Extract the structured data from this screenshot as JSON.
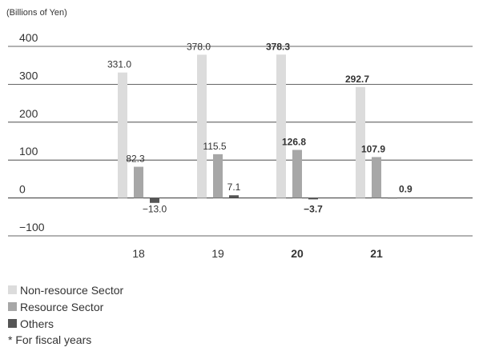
{
  "chart_data": {
    "type": "bar",
    "unit_label": "(Billions of Yen)",
    "categories": [
      "18",
      "19",
      "20",
      "21"
    ],
    "bold_categories": [
      "20",
      "21"
    ],
    "ylim": [
      -100,
      400
    ],
    "yticks": [
      400,
      300,
      200,
      100,
      0,
      -100
    ],
    "ytick_labels": [
      "400",
      "300",
      "200",
      "100",
      "0",
      "−100"
    ],
    "grid": true,
    "series": [
      {
        "name": "Non-resource Sector",
        "color": "#dcdcdc",
        "values": [
          331.0,
          378.0,
          378.3,
          292.7
        ],
        "labels": [
          "331.0",
          "378.0",
          "378.3",
          "292.7"
        ]
      },
      {
        "name": "Resource Sector",
        "color": "#a7a7a7",
        "values": [
          82.3,
          115.5,
          126.8,
          107.9
        ],
        "labels": [
          "82.3",
          "115.5",
          "126.8",
          "107.9"
        ]
      },
      {
        "name": "Others",
        "color": "#555555",
        "values": [
          -13.0,
          7.1,
          -3.7,
          0.9
        ],
        "labels": [
          "−13.0",
          "7.1",
          "−3.7",
          "0.9"
        ]
      }
    ],
    "legend_placement": "bottom-left"
  },
  "footnote": "* For fiscal years"
}
